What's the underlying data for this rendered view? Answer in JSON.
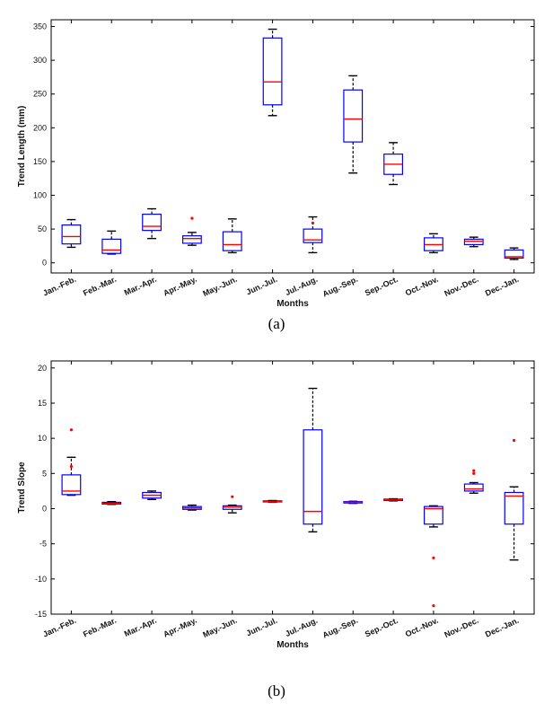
{
  "chart_data": [
    {
      "type": "box",
      "panel_label": "(a)",
      "xlabel": "Months",
      "ylabel": "Trend Length (mm)",
      "ylim": [
        -15,
        360
      ],
      "yticks": [
        0,
        50,
        100,
        150,
        200,
        250,
        300,
        350
      ],
      "grid": false,
      "colors": {
        "box": "#0000ff",
        "median": "#ff0000",
        "whisker": "#000000",
        "outlier": "#ff0000"
      },
      "categories": [
        "Jan.-Feb.",
        "Feb.-Mar.",
        "Mar.-Apr.",
        "Apr.-May.",
        "May.-Jun.",
        "Jun.-Jul.",
        "Jul.-Aug.",
        "Aug.-Sep.",
        "Sep.-Oct.",
        "Oct.-Nov.",
        "Nov.-Dec.",
        "Dec.-Jan."
      ],
      "boxes": [
        {
          "min": 23,
          "q1": 28,
          "median": 39,
          "q3": 56,
          "max": 64,
          "outliers": []
        },
        {
          "min": 13,
          "q1": 14,
          "median": 19,
          "q3": 35,
          "max": 47,
          "outliers": []
        },
        {
          "min": 36,
          "q1": 48,
          "median": 54,
          "q3": 72,
          "max": 80,
          "outliers": []
        },
        {
          "min": 26,
          "q1": 29,
          "median": 36,
          "q3": 40,
          "max": 45,
          "outliers": [
            66
          ]
        },
        {
          "min": 15,
          "q1": 18,
          "median": 27,
          "q3": 46,
          "max": 65,
          "outliers": []
        },
        {
          "min": 218,
          "q1": 234,
          "median": 268,
          "q3": 333,
          "max": 346,
          "outliers": []
        },
        {
          "min": 15,
          "q1": 30,
          "median": 34,
          "q3": 50,
          "max": 68,
          "outliers": [
            59
          ]
        },
        {
          "min": 133,
          "q1": 179,
          "median": 213,
          "q3": 256,
          "max": 277,
          "outliers": []
        },
        {
          "min": 116,
          "q1": 131,
          "median": 146,
          "q3": 161,
          "max": 178,
          "outliers": []
        },
        {
          "min": 15,
          "q1": 18,
          "median": 27,
          "q3": 37,
          "max": 43,
          "outliers": []
        },
        {
          "min": 24,
          "q1": 27,
          "median": 32,
          "q3": 35,
          "max": 38,
          "outliers": []
        },
        {
          "min": 5,
          "q1": 7,
          "median": 9,
          "q3": 19,
          "max": 22,
          "outliers": []
        }
      ]
    },
    {
      "type": "box",
      "panel_label": "(b)",
      "xlabel": "Months",
      "ylabel": "Trend Slope",
      "ylim": [
        -15,
        21
      ],
      "yticks": [
        -15,
        -10,
        -5,
        0,
        5,
        10,
        15,
        20
      ],
      "grid": false,
      "colors": {
        "box": "#0000ff",
        "median": "#ff0000",
        "whisker": "#000000",
        "outlier": "#ff0000"
      },
      "categories": [
        "Jan.-Feb.",
        "Feb.-Mar.",
        "Mar.-Apr.",
        "Apr.-May.",
        "May.-Jun.",
        "Jun.-Jul.",
        "Jul.-Aug.",
        "Aug.-Sep.",
        "Sep.-Oct.",
        "Oct.-Nov.",
        "Nov.-Dec.",
        "Dec.-Jan."
      ],
      "boxes": [
        {
          "min": 1.9,
          "q1": 2.0,
          "median": 2.5,
          "q3": 4.8,
          "max": 7.3,
          "outliers": [
            11.2,
            6.0
          ]
        },
        {
          "min": 0.6,
          "q1": 0.65,
          "median": 0.75,
          "q3": 0.9,
          "max": 1.0,
          "outliers": []
        },
        {
          "min": 1.3,
          "q1": 1.5,
          "median": 1.9,
          "q3": 2.3,
          "max": 2.5,
          "outliers": []
        },
        {
          "min": -0.2,
          "q1": -0.1,
          "median": 0.1,
          "q3": 0.3,
          "max": 0.5,
          "outliers": []
        },
        {
          "min": -0.6,
          "q1": -0.1,
          "median": 0.2,
          "q3": 0.4,
          "max": 0.5,
          "outliers": [
            1.7
          ]
        },
        {
          "min": 0.9,
          "q1": 0.95,
          "median": 1.0,
          "q3": 1.1,
          "max": 1.15,
          "outliers": []
        },
        {
          "min": -3.3,
          "q1": -2.2,
          "median": -0.4,
          "q3": 11.2,
          "max": 17.1,
          "outliers": []
        },
        {
          "min": 0.75,
          "q1": 0.8,
          "median": 0.9,
          "q3": 1.0,
          "max": 1.05,
          "outliers": []
        },
        {
          "min": 1.1,
          "q1": 1.15,
          "median": 1.25,
          "q3": 1.35,
          "max": 1.4,
          "outliers": []
        },
        {
          "min": -2.6,
          "q1": -2.2,
          "median": 0.0,
          "q3": 0.3,
          "max": 0.4,
          "outliers": [
            -7.0,
            -13.8
          ]
        },
        {
          "min": 2.2,
          "q1": 2.5,
          "median": 2.8,
          "q3": 3.5,
          "max": 3.7,
          "outliers": [
            5.0,
            5.4
          ]
        },
        {
          "min": -7.3,
          "q1": -2.2,
          "median": 1.8,
          "q3": 2.3,
          "max": 3.1,
          "outliers": [
            9.7
          ]
        }
      ]
    }
  ]
}
